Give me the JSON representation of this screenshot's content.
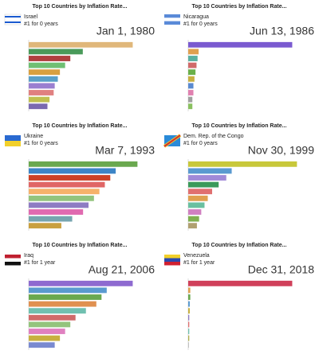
{
  "chart_data": [
    {
      "type": "bar",
      "orientation": "horizontal",
      "title": "Top 10 Countries by Inflation Rate...",
      "leader": "Israel",
      "subtitle": "#1 for 0 years",
      "date": "Jan 1, 1980",
      "categories": [
        null,
        null,
        null,
        null,
        null,
        null,
        null,
        null,
        null,
        null
      ],
      "values": [
        100,
        52,
        40,
        35,
        30,
        28,
        25,
        24,
        20,
        18
      ],
      "colors": [
        "#e0b77a",
        "#4a9a5a",
        "#b04040",
        "#6fbf73",
        "#d8a040",
        "#5aa0c8",
        "#9b7fd0",
        "#e08080",
        "#c0c050",
        "#7a6ab0"
      ],
      "xlim": [
        0,
        115
      ]
    },
    {
      "type": "bar",
      "orientation": "horizontal",
      "title": "Top 10 Countries by Inflation Rate...",
      "leader": "Nicaragua",
      "subtitle": "#1 for 0 years",
      "date": "Jun 13, 1986",
      "categories": [
        null,
        null,
        null,
        null,
        null,
        null,
        null,
        null,
        null,
        null
      ],
      "values": [
        100,
        10,
        9,
        8,
        7,
        6,
        5,
        5,
        4,
        4
      ],
      "colors": [
        "#7a5ad0",
        "#e0a050",
        "#5ab0a0",
        "#d06a6a",
        "#6ab04a",
        "#c8b040",
        "#5a8ad0",
        "#e080b0",
        "#a0a0a0",
        "#8ac060"
      ],
      "xlim": [
        0,
        115
      ]
    },
    {
      "type": "bar",
      "orientation": "horizontal",
      "title": "Top 10 Countries by Inflation Rate...",
      "leader": "Ukraine",
      "subtitle": "#1 for 0 years",
      "date": "Mar 7, 1993",
      "categories": [
        null,
        null,
        null,
        null,
        null,
        null,
        null,
        null,
        null,
        null
      ],
      "values": [
        100,
        80,
        75,
        70,
        65,
        60,
        55,
        50,
        40,
        30
      ],
      "colors": [
        "#6aa84f",
        "#3d85c6",
        "#cc4125",
        "#e06666",
        "#f6b26b",
        "#93c47d",
        "#8e7cc3",
        "#e06ab0",
        "#76a5af",
        "#c9a040"
      ],
      "xlim": [
        0,
        110
      ]
    },
    {
      "type": "bar",
      "orientation": "horizontal",
      "title": "Top 10 Countries by Inflation Rate...",
      "leader": "Dem. Rep. of the Congo",
      "subtitle": "#1 for 0 years",
      "date": "Nov 30, 1999",
      "categories": [
        null,
        null,
        null,
        null,
        null,
        null,
        null,
        null,
        null,
        null
      ],
      "values": [
        100,
        40,
        35,
        28,
        22,
        18,
        15,
        12,
        10,
        8
      ],
      "colors": [
        "#c8c83a",
        "#5a9ad0",
        "#a08ad8",
        "#3a9a5a",
        "#e07070",
        "#e0a050",
        "#6ac0a0",
        "#d080c0",
        "#80b050",
        "#b0a070"
      ],
      "xlim": [
        0,
        110
      ]
    },
    {
      "type": "bar",
      "orientation": "horizontal",
      "title": "Top 10 Countries by Inflation Rate...",
      "leader": "Iraq",
      "subtitle": "#1 for 1 year",
      "date": "Aug 21, 2006",
      "categories": [
        null,
        null,
        null,
        null,
        null,
        null,
        null,
        null,
        null,
        null
      ],
      "values": [
        100,
        75,
        70,
        65,
        55,
        45,
        40,
        35,
        30,
        25
      ],
      "colors": [
        "#8e6ad0",
        "#5a9ad0",
        "#6aa84f",
        "#e09050",
        "#70c0b0",
        "#d06a6a",
        "#93c47d",
        "#e080c0",
        "#c8b040",
        "#7a8ad0"
      ],
      "xlim": [
        0,
        115
      ]
    },
    {
      "type": "bar",
      "orientation": "horizontal",
      "title": "Top 10 Countries by Inflation Rate...",
      "leader": "Venezuela",
      "subtitle": "#1 for 1 year",
      "date": "Dec 31, 2018",
      "categories": [
        null,
        null,
        null,
        null,
        null,
        null,
        null,
        null,
        null,
        null
      ],
      "values": [
        100,
        2,
        2,
        1.5,
        1.5,
        1,
        1,
        1,
        1,
        0.5
      ],
      "colors": [
        "#d0405a",
        "#e0a050",
        "#6aa84f",
        "#5a9ad0",
        "#c8b040",
        "#8e7cc3",
        "#e07070",
        "#70c0b0",
        "#b0b050",
        "#a0a0a0"
      ],
      "xlim": [
        0,
        115
      ]
    }
  ]
}
